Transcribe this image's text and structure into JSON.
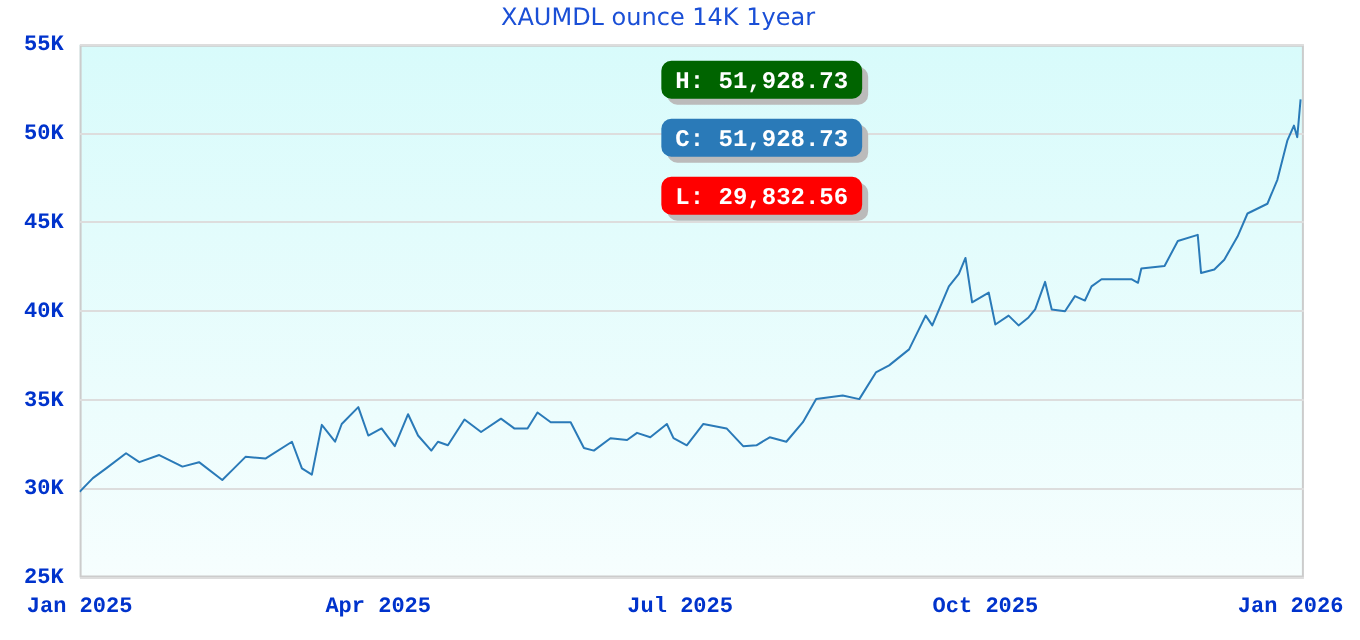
{
  "chart_data": {
    "type": "line",
    "title": "XAUMDL ounce 14K 1year",
    "annotations": [
      "H: 51,928.73",
      "C: 51,928.73",
      "L: 29,832.56"
    ],
    "x": [
      "2025-01-01",
      "2025-01-05",
      "2025-01-09",
      "2025-01-15",
      "2025-01-19",
      "2025-01-25",
      "2025-02-01",
      "2025-02-06",
      "2025-02-13",
      "2025-02-16",
      "2025-02-20",
      "2025-02-26",
      "2025-03-06",
      "2025-03-09",
      "2025-03-12",
      "2025-03-15",
      "2025-03-19",
      "2025-03-21",
      "2025-03-26",
      "2025-03-29",
      "2025-04-02",
      "2025-04-06",
      "2025-04-10",
      "2025-04-13",
      "2025-04-17",
      "2025-04-19",
      "2025-04-22",
      "2025-04-27",
      "2025-05-02",
      "2025-05-08",
      "2025-05-12",
      "2025-05-16",
      "2025-05-19",
      "2025-05-23",
      "2025-05-29",
      "2025-06-02",
      "2025-06-05",
      "2025-06-10",
      "2025-06-15",
      "2025-06-18",
      "2025-06-22",
      "2025-06-27",
      "2025-06-29",
      "2025-07-03",
      "2025-07-08",
      "2025-07-15",
      "2025-07-20",
      "2025-07-24",
      "2025-07-28",
      "2025-08-02",
      "2025-08-07",
      "2025-08-11",
      "2025-08-19",
      "2025-08-24",
      "2025-08-29",
      "2025-09-02",
      "2025-09-08",
      "2025-09-13",
      "2025-09-15",
      "2025-09-20",
      "2025-09-23",
      "2025-09-25",
      "2025-09-27",
      "2025-10-02",
      "2025-10-04",
      "2025-10-08",
      "2025-10-11",
      "2025-10-14",
      "2025-10-16",
      "2025-10-19",
      "2025-10-21",
      "2025-10-25",
      "2025-10-28",
      "2025-10-31",
      "2025-11-02",
      "2025-11-05",
      "2025-11-14",
      "2025-11-16",
      "2025-11-17",
      "2025-11-24",
      "2025-11-28",
      "2025-12-04",
      "2025-12-05",
      "2025-12-09",
      "2025-12-12",
      "2025-12-16",
      "2025-12-19",
      "2025-12-25",
      "2025-12-28",
      "2025-12-31",
      "2026-01-02",
      "2026-01-03",
      "2026-01-04"
    ],
    "series": [
      {
        "color": "#2a7ab8",
        "values": [
          29833,
          30600,
          31150,
          32000,
          31500,
          31900,
          31250,
          31500,
          30500,
          31050,
          31800,
          31700,
          32650,
          31150,
          30800,
          33600,
          32650,
          33650,
          34600,
          33000,
          33400,
          32400,
          34200,
          33000,
          32150,
          32650,
          32450,
          33900,
          33200,
          33950,
          33400,
          33400,
          34300,
          33750,
          33750,
          32300,
          32150,
          32850,
          32750,
          33150,
          32900,
          33650,
          32850,
          32450,
          33650,
          33400,
          32400,
          32450,
          32900,
          32650,
          33750,
          35050,
          35250,
          35050,
          36550,
          36950,
          37850,
          39750,
          39200,
          41400,
          42100,
          43000,
          40500,
          41050,
          39250,
          39750,
          39200,
          39650,
          40100,
          41650,
          40100,
          40000,
          40850,
          40600,
          41400,
          41800,
          41800,
          41600,
          42400,
          42550,
          43950,
          44300,
          42150,
          42350,
          42900,
          44200,
          45500,
          46050,
          47400,
          49600,
          50450,
          49800,
          51929
        ]
      }
    ],
    "xlim": [
      "2025-01-01",
      "2026-01-05"
    ],
    "xticks": [
      {
        "value": "2025-01-01",
        "label": "Jan 2025"
      },
      {
        "value": "2025-04-01",
        "label": "Apr 2025"
      },
      {
        "value": "2025-07-01",
        "label": "Jul 2025"
      },
      {
        "value": "2025-10-01",
        "label": "Oct 2025"
      },
      {
        "value": "2026-01-01",
        "label": "Jan 2026"
      }
    ],
    "ylim": [
      25000,
      55000
    ],
    "yticks": [
      {
        "value": 25000,
        "label": "25K"
      },
      {
        "value": 30000,
        "label": "30K"
      },
      {
        "value": 35000,
        "label": "35K"
      },
      {
        "value": 40000,
        "label": "40K"
      },
      {
        "value": 45000,
        "label": "45K"
      },
      {
        "value": 50000,
        "label": "50K"
      },
      {
        "value": 55000,
        "label": "55K"
      }
    ],
    "grid": "y",
    "marker": "none",
    "line_style": "solid",
    "legend": false
  }
}
